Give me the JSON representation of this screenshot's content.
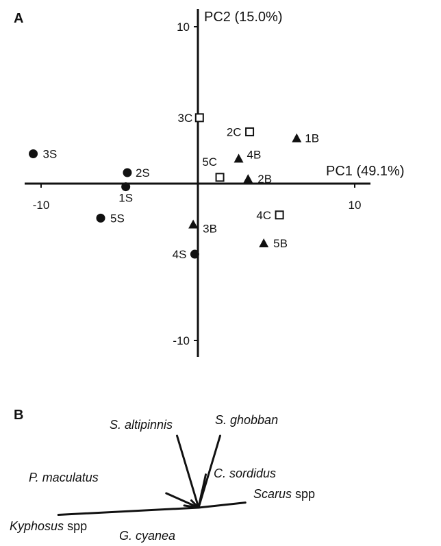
{
  "panels": {
    "a_letter": "A",
    "b_letter": "B"
  },
  "colors": {
    "ink": "#111111",
    "background": "#ffffff"
  },
  "chart_data": [
    {
      "type": "scatter",
      "panel": "A",
      "xlabel": "PC1 (49.1%)",
      "ylabel": "PC2 (15.0%)",
      "xlim": [
        -11.2,
        11.2
      ],
      "ylim": [
        -11,
        11
      ],
      "ticks": {
        "x": [
          -10,
          10
        ],
        "y": [
          10,
          -10
        ]
      },
      "tick_labels": {
        "x": [
          "-10",
          "10"
        ],
        "y": [
          "10",
          "-10"
        ]
      },
      "grid": false,
      "legend": "none",
      "series": [
        {
          "marker": "circle",
          "points": [
            {
              "label": "1S",
              "x": -4.6,
              "y": -0.2
            },
            {
              "label": "2S",
              "x": -4.5,
              "y": 0.7
            },
            {
              "label": "3S",
              "x": -10.5,
              "y": 1.9
            },
            {
              "label": "4S",
              "x": -0.2,
              "y": -4.5
            },
            {
              "label": "5S",
              "x": -6.2,
              "y": -2.2
            }
          ]
        },
        {
          "marker": "triangle",
          "points": [
            {
              "label": "1B",
              "x": 6.3,
              "y": 2.9
            },
            {
              "label": "2B",
              "x": 3.2,
              "y": 0.3
            },
            {
              "label": "3B",
              "x": -0.3,
              "y": -2.6
            },
            {
              "label": "4B",
              "x": 2.6,
              "y": 1.6
            },
            {
              "label": "5B",
              "x": 4.2,
              "y": -3.8
            }
          ]
        },
        {
          "marker": "open-square",
          "points": [
            {
              "label": "2C",
              "x": 3.3,
              "y": 3.3
            },
            {
              "label": "3C",
              "x": 0.1,
              "y": 4.2
            },
            {
              "label": "4C",
              "x": 5.2,
              "y": -2.0
            },
            {
              "label": "5C",
              "x": 1.4,
              "y": 0.4
            }
          ]
        }
      ]
    },
    {
      "type": "biplot-vectors",
      "panel": "B",
      "vectors": [
        {
          "species": "S. altipinnis",
          "suffix": "",
          "dx": -0.3,
          "dy": 1.0
        },
        {
          "species": "S. ghobban",
          "suffix": "",
          "dx": 0.3,
          "dy": 1.0
        },
        {
          "species": "C. sordidus",
          "suffix": "",
          "dx": 0.1,
          "dy": 0.46
        },
        {
          "species": "Scarus",
          "suffix": " spp",
          "dx": 0.65,
          "dy": 0.07
        },
        {
          "species": "P. maculatus",
          "suffix": "",
          "dx": -0.45,
          "dy": 0.2
        },
        {
          "species": "Kyphosus",
          "suffix": " spp",
          "dx": -1.95,
          "dy": -0.1
        },
        {
          "species": "G. cyanea",
          "suffix": "",
          "dx": -0.2,
          "dy": 0.03
        },
        {
          "species": "",
          "suffix": "",
          "dx": -0.1,
          "dy": 0.1
        },
        {
          "species": "",
          "suffix": "",
          "dx": 0.05,
          "dy": 0.24
        }
      ]
    }
  ]
}
